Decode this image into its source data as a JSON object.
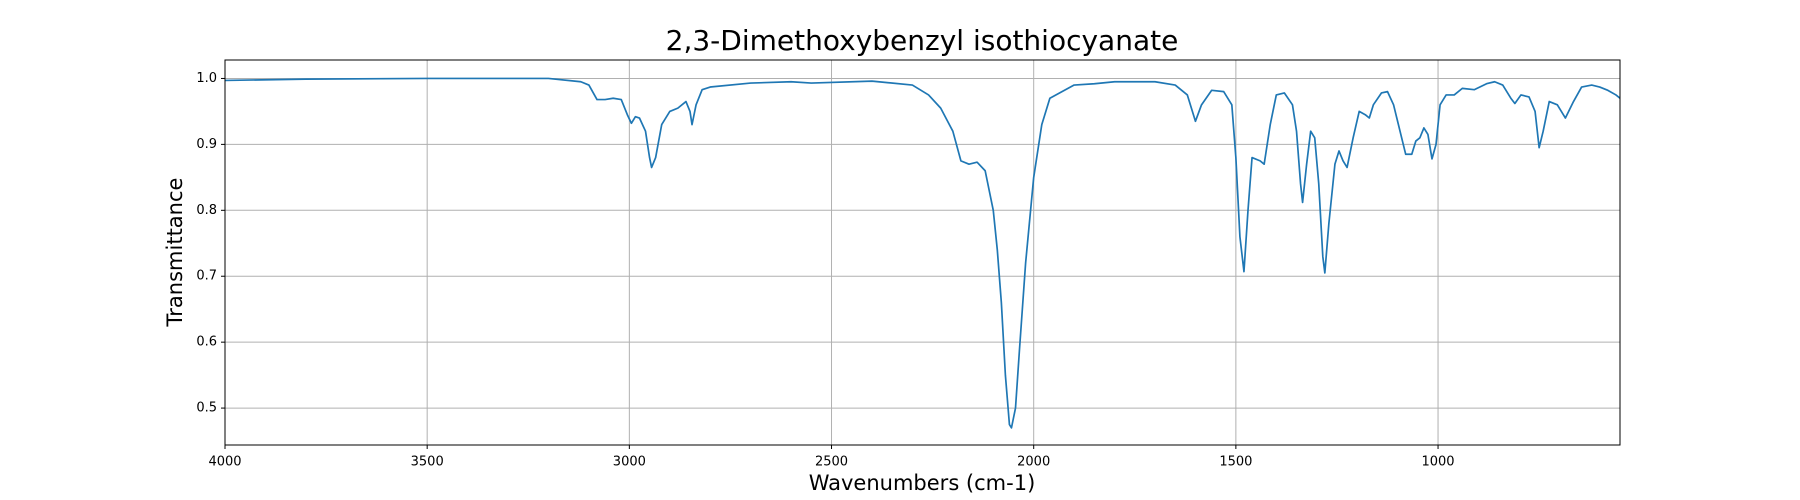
{
  "chart_data": {
    "type": "line",
    "title": "2,3-Dimethoxybenzyl isothiocyanate",
    "xlabel": "Wavenumbers (cm-1)",
    "ylabel": "Transmittance",
    "color": "#1f77b4",
    "grid": true,
    "xlim": [
      4000,
      550
    ],
    "ylim": [
      0.444,
      1.028
    ],
    "xticks": [
      4000,
      3500,
      3000,
      2500,
      2000,
      1500,
      1000
    ],
    "yticks": [
      0.5,
      0.6,
      0.7,
      0.8,
      0.9,
      {
        "value": 1,
        "label": "1.0"
      }
    ],
    "x": [
      4000,
      3800,
      3500,
      3200,
      3120,
      3100,
      3080,
      3060,
      3040,
      3020,
      3005,
      2995,
      2985,
      2975,
      2960,
      2950,
      2945,
      2935,
      2920,
      2900,
      2880,
      2860,
      2850,
      2845,
      2835,
      2820,
      2800,
      2700,
      2600,
      2550,
      2400,
      2300,
      2260,
      2230,
      2200,
      2180,
      2160,
      2140,
      2120,
      2100,
      2090,
      2080,
      2070,
      2060,
      2055,
      2045,
      2035,
      2020,
      2000,
      1980,
      1960,
      1900,
      1850,
      1800,
      1700,
      1650,
      1620,
      1600,
      1585,
      1560,
      1530,
      1510,
      1500,
      1490,
      1480,
      1470,
      1460,
      1440,
      1430,
      1415,
      1400,
      1380,
      1360,
      1350,
      1340,
      1335,
      1325,
      1315,
      1305,
      1295,
      1285,
      1280,
      1270,
      1255,
      1245,
      1235,
      1225,
      1210,
      1195,
      1180,
      1170,
      1160,
      1140,
      1125,
      1110,
      1090,
      1080,
      1065,
      1055,
      1045,
      1035,
      1025,
      1015,
      1005,
      995,
      980,
      960,
      940,
      910,
      880,
      860,
      840,
      820,
      810,
      795,
      775,
      760,
      750,
      740,
      725,
      705,
      685,
      665,
      645,
      620,
      600,
      580,
      560,
      550
    ],
    "values": [
      0.997,
      0.999,
      1.0,
      1.0,
      0.995,
      0.99,
      0.968,
      0.968,
      0.97,
      0.968,
      0.945,
      0.932,
      0.942,
      0.94,
      0.92,
      0.88,
      0.865,
      0.88,
      0.93,
      0.95,
      0.955,
      0.965,
      0.95,
      0.93,
      0.96,
      0.983,
      0.987,
      0.993,
      0.995,
      0.993,
      0.996,
      0.99,
      0.975,
      0.955,
      0.92,
      0.875,
      0.87,
      0.873,
      0.86,
      0.8,
      0.74,
      0.66,
      0.55,
      0.475,
      0.47,
      0.5,
      0.59,
      0.72,
      0.85,
      0.93,
      0.97,
      0.99,
      0.992,
      0.995,
      0.995,
      0.99,
      0.975,
      0.935,
      0.96,
      0.982,
      0.98,
      0.96,
      0.88,
      0.76,
      0.707,
      0.8,
      0.88,
      0.875,
      0.87,
      0.93,
      0.975,
      0.978,
      0.96,
      0.92,
      0.84,
      0.812,
      0.87,
      0.92,
      0.91,
      0.84,
      0.73,
      0.705,
      0.78,
      0.87,
      0.89,
      0.875,
      0.865,
      0.91,
      0.95,
      0.945,
      0.94,
      0.96,
      0.978,
      0.98,
      0.96,
      0.91,
      0.885,
      0.885,
      0.905,
      0.91,
      0.925,
      0.915,
      0.878,
      0.9,
      0.96,
      0.975,
      0.975,
      0.985,
      0.983,
      0.992,
      0.995,
      0.99,
      0.97,
      0.962,
      0.975,
      0.972,
      0.95,
      0.895,
      0.92,
      0.965,
      0.96,
      0.94,
      0.965,
      0.987,
      0.99,
      0.987,
      0.982,
      0.975,
      0.97
    ]
  }
}
